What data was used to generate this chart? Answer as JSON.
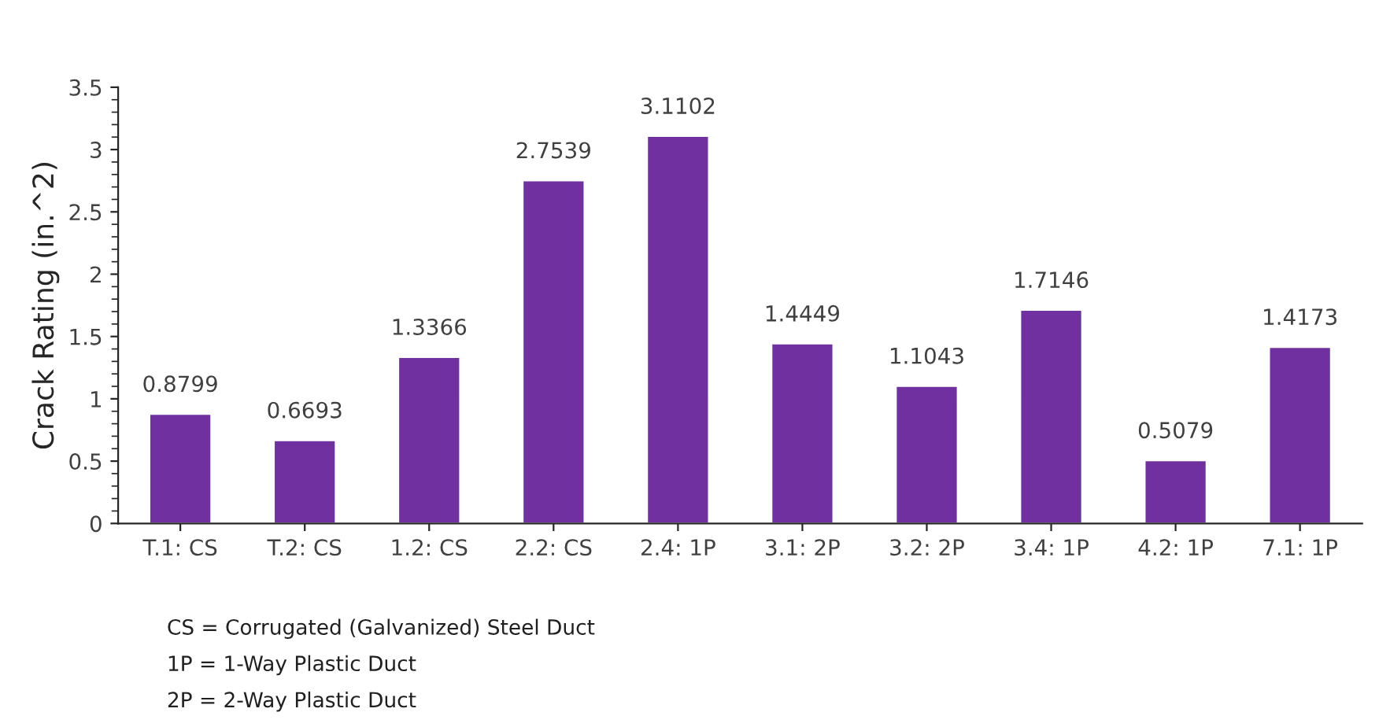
{
  "chart_data": {
    "type": "bar",
    "ylabel": "Crack Rating (in.^2)",
    "categories": [
      "T.1: CS",
      "T.2: CS",
      "1.2: CS",
      "2.2: CS",
      "2.4: 1P",
      "3.1: 2P",
      "3.2: 2P",
      "3.4: 1P",
      "4.2: 1P",
      "7.1: 1P"
    ],
    "values": [
      0.8799,
      0.6693,
      1.3366,
      2.7539,
      3.1102,
      1.4449,
      1.1043,
      1.7146,
      0.5079,
      1.4173
    ],
    "color": "#7030a0",
    "data_labels": true,
    "grid": false,
    "legend": false,
    "ylim": [
      0,
      3.5
    ],
    "yticks": [
      0,
      0.5,
      1,
      1.5,
      2,
      2.5,
      3,
      3.5
    ],
    "annotations": [
      "CS = Corrugated (Galvanized) Steel Duct",
      "1P = 1-Way Plastic Duct",
      "2P = 2-Way Plastic Duct"
    ]
  }
}
